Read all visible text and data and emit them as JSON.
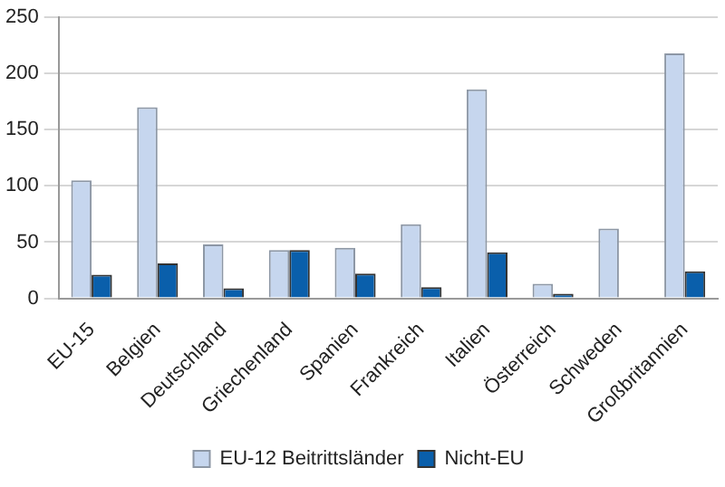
{
  "chart_data": {
    "type": "bar",
    "categories": [
      "EU-15",
      "Belgien",
      "Deutschland",
      "Griechenland",
      "Spanien",
      "Frankreich",
      "Italien",
      "Österreich",
      "Schweden",
      "Großbritannien"
    ],
    "series": [
      {
        "name": "EU-12 Beitrittsländer",
        "color": "#c6d6ee",
        "values": [
          105,
          170,
          48,
          43,
          45,
          66,
          186,
          13,
          62,
          218
        ]
      },
      {
        "name": "Nicht-EU",
        "color": "#0a5fab",
        "values": [
          21,
          31,
          9,
          43,
          22,
          10,
          41,
          4,
          0,
          24
        ]
      }
    ],
    "ylim": [
      0,
      250
    ],
    "yticks": [
      0,
      50,
      100,
      150,
      200,
      250
    ],
    "grid": "y",
    "legend": "bottom"
  }
}
